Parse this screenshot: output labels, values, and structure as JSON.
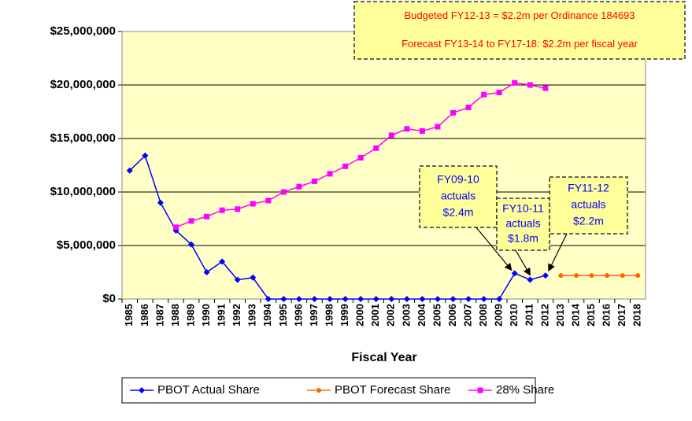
{
  "chart_data": {
    "type": "line",
    "x_label": "Fiscal Year",
    "categories": [
      "1985",
      "1986",
      "1987",
      "1988",
      "1989",
      "1990",
      "1991",
      "1992",
      "1993",
      "1994",
      "1995",
      "1996",
      "1997",
      "1998",
      "1999",
      "2000",
      "2001",
      "2002",
      "2003",
      "2004",
      "2005",
      "2006",
      "2007",
      "2008",
      "2009",
      "2010",
      "2011",
      "2012",
      "2013",
      "2014",
      "2015",
      "2016",
      "2017",
      "2018"
    ],
    "series": [
      {
        "name": "PBOT Actual Share",
        "color": "#0000ff",
        "marker": "diamond",
        "values": [
          12000000,
          13400000,
          9000000,
          6400000,
          5100000,
          2500000,
          3500000,
          1800000,
          2000000,
          0,
          0,
          0,
          0,
          0,
          0,
          0,
          0,
          0,
          0,
          0,
          0,
          0,
          0,
          0,
          0,
          2400000,
          1800000,
          2200000,
          null,
          null,
          null,
          null,
          null,
          null
        ]
      },
      {
        "name": "PBOT Forecast Share",
        "color": "#ff6600",
        "marker": "circle",
        "values": [
          null,
          null,
          null,
          null,
          null,
          null,
          null,
          null,
          null,
          null,
          null,
          null,
          null,
          null,
          null,
          null,
          null,
          null,
          null,
          null,
          null,
          null,
          null,
          null,
          null,
          null,
          null,
          null,
          2200000,
          2200000,
          2200000,
          2200000,
          2200000,
          2200000
        ]
      },
      {
        "name": "28% Share",
        "color": "#ff00ff",
        "marker": "square",
        "values": [
          null,
          null,
          null,
          6700000,
          7300000,
          7700000,
          8300000,
          8400000,
          8900000,
          9200000,
          10000000,
          10500000,
          11000000,
          11700000,
          12400000,
          13200000,
          14100000,
          15300000,
          15900000,
          15700000,
          16100000,
          17400000,
          17900000,
          19100000,
          19300000,
          20200000,
          20000000,
          19700000,
          null,
          null,
          null,
          null,
          null,
          null
        ]
      }
    ],
    "ylim": [
      0,
      25000000
    ],
    "yticks": [
      {
        "value": 0,
        "label": "$0"
      },
      {
        "value": 5000000,
        "label": "$5,000,000"
      },
      {
        "value": 10000000,
        "label": "$10,000,000"
      },
      {
        "value": 15000000,
        "label": "$15,000,000"
      },
      {
        "value": 20000000,
        "label": "$20,000,000"
      },
      {
        "value": 25000000,
        "label": "$25,000,000"
      }
    ],
    "grid": true,
    "legend": "bottom",
    "annotations": [
      {
        "lines": [
          "Budgeted FY12-13 = $2.2m per Ordinance 184693",
          "Forecast FY13-14 to FY17-18: $2.2m per fiscal year"
        ],
        "color": "#ff0000"
      },
      {
        "lines": [
          "FY09-10",
          "actuals",
          "$2.4m"
        ],
        "color": "#0000ff"
      },
      {
        "lines": [
          "FY10-11",
          "actuals",
          "$1.8m"
        ],
        "color": "#0000ff"
      },
      {
        "lines": [
          "FY11-12",
          "actuals",
          "$2.2m"
        ],
        "color": "#0000ff"
      }
    ]
  }
}
